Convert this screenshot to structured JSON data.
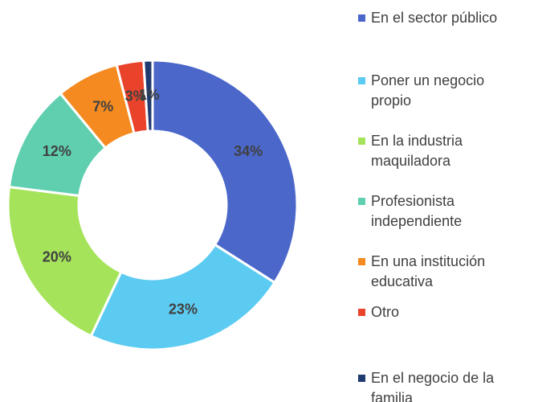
{
  "chart_data": {
    "type": "donut",
    "categories": [
      "En el sector público",
      "Poner un negocio propio",
      "En la industria maquiladora",
      "Profesionista independiente",
      "En una institución educativa",
      "Otro",
      "En el negocio de la familia"
    ],
    "values": [
      34,
      23,
      20,
      12,
      7,
      3,
      1
    ],
    "value_labels": [
      "34%",
      "23%",
      "20%",
      "12%",
      "7%",
      "3%",
      "1%"
    ],
    "colors": [
      "#4b67ca",
      "#5ccbf2",
      "#a5e35a",
      "#5fcfb0",
      "#f58b20",
      "#e9432b",
      "#1f3b70"
    ],
    "legend": "right"
  }
}
